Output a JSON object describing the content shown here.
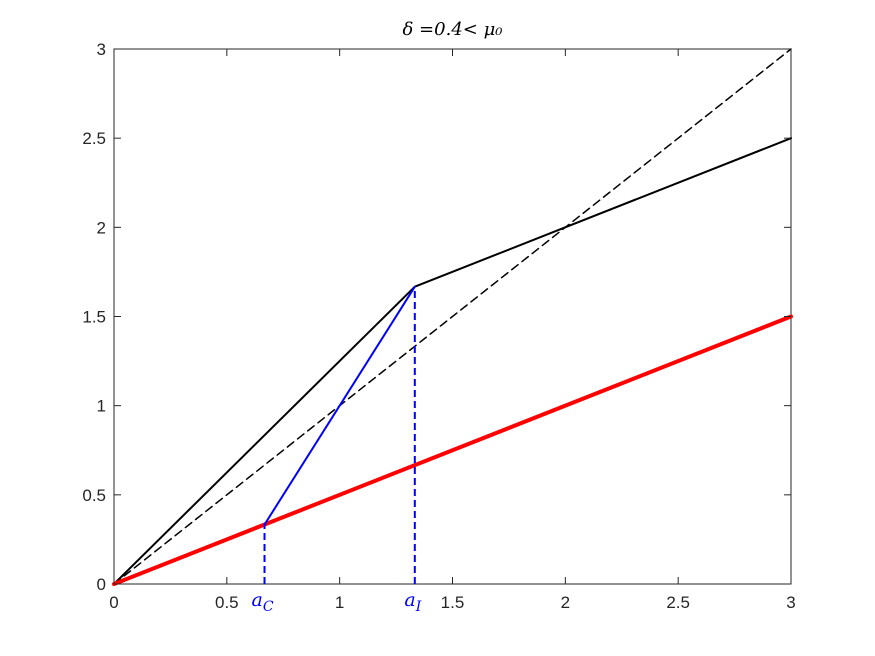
{
  "chart_data": {
    "type": "line",
    "title": "δ =0.4< μ₀",
    "xlim": [
      0,
      3
    ],
    "ylim": [
      0,
      3
    ],
    "xticks": [
      0,
      0.5,
      1,
      1.5,
      2,
      2.5,
      3
    ],
    "xtick_labels": [
      "0",
      "0.5",
      "1",
      "1.5",
      "2",
      "2.5",
      "3"
    ],
    "yticks": [
      0,
      0.5,
      1,
      1.5,
      2,
      2.5,
      3
    ],
    "ytick_labels": [
      "0",
      "0.5",
      "1",
      "1.5",
      "2",
      "2.5",
      "3"
    ],
    "grid": false,
    "series": [
      {
        "key": "diagonal-dashed",
        "color": "#000000",
        "style": "dashed",
        "width": 1.5,
        "points": [
          [
            0,
            0
          ],
          [
            3,
            3
          ]
        ]
      },
      {
        "key": "black-kinked",
        "color": "#000000",
        "style": "solid",
        "width": 2,
        "points": [
          [
            0,
            0
          ],
          [
            1.333,
            1.667
          ],
          [
            3,
            2.5
          ]
        ]
      },
      {
        "key": "red-line",
        "color": "#ff0000",
        "style": "solid",
        "width": 4,
        "points": [
          [
            0,
            0
          ],
          [
            3,
            1.5
          ]
        ]
      },
      {
        "key": "blue-segment",
        "color": "#0000ff",
        "style": "solid",
        "width": 2,
        "points": [
          [
            0.667,
            0.333
          ],
          [
            1.333,
            1.667
          ]
        ]
      }
    ],
    "vertical_markers": [
      {
        "key": "a-c",
        "x": 0.667,
        "y_top": 0.333,
        "color": "#0000ff",
        "style": "dashed",
        "label_base": "a",
        "label_sub": "C"
      },
      {
        "key": "a-i",
        "x": 1.333,
        "y_top": 1.667,
        "color": "#0000ff",
        "style": "dashed",
        "label_base": "a",
        "label_sub": "I"
      }
    ]
  }
}
